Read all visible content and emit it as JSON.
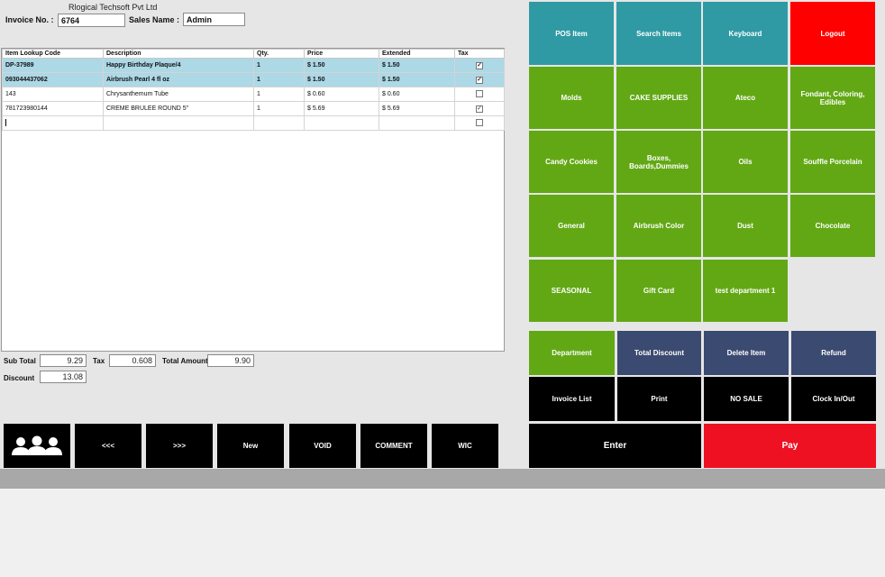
{
  "header": {
    "company": "Rlogical Techsoft Pvt Ltd",
    "invoice_label": "Invoice No. :",
    "invoice_value": "6764",
    "sales_label": "Sales Name :",
    "sales_value": "Admin"
  },
  "grid": {
    "columns": [
      "Item Lookup Code",
      "Description",
      "Qty.",
      "Price",
      "Extended",
      "Tax"
    ],
    "rows": [
      {
        "code": "DP-37989",
        "desc": "Happy Birthday Plaque/4",
        "qty": "1",
        "price": "$ 1.50",
        "ext": "$ 1.50",
        "tax": true,
        "selected": true
      },
      {
        "code": "093044437062",
        "desc": "Airbrush Pearl 4 fl oz",
        "qty": "1",
        "price": "$ 1.50",
        "ext": "$ 1.50",
        "tax": true,
        "selected": true
      },
      {
        "code": "143",
        "desc": "Chrysanthemum Tube",
        "qty": "1",
        "price": "$ 0.60",
        "ext": "$ 0.60",
        "tax": false,
        "selected": false
      },
      {
        "code": "781723980144",
        "desc": "CREME BRULEE ROUND 5\"",
        "qty": "1",
        "price": "$ 5.69",
        "ext": "$ 5.69",
        "tax": true,
        "selected": false
      }
    ],
    "check_glyph": "☑"
  },
  "totals": {
    "subtotal_label": "Sub Total",
    "subtotal": "9.29",
    "tax_label": "Tax",
    "tax": "0.608",
    "total_label": "Total Amount",
    "total": "9.90",
    "discount_label": "Discount",
    "discount": "13.08"
  },
  "bottom_buttons": {
    "customers_icon": "customers-icon",
    "prev": "<<<",
    "next": ">>>",
    "new": "New",
    "void": "VOID",
    "comment": "COMMENT",
    "wic": "WIC"
  },
  "top_buttons": {
    "pos_item": "POS Item",
    "search_items": "Search Items",
    "keyboard": "Keyboard",
    "logout": "Logout"
  },
  "departments": [
    "Molds",
    "CAKE SUPPLIES",
    "Ateco",
    "Fondant, Coloring, Edibles",
    "Candy  Cookies",
    "Boxes, Boards,Dummies",
    "Oils",
    "Souffle Porcelain",
    "General",
    "Airbrush Color",
    "Dust",
    "Chocolate",
    "SEASONAL",
    "Gift Card",
    "test department 1"
  ],
  "actions": {
    "department": "Department",
    "total_discount": "Total Discount",
    "delete_item": "Delete Item",
    "refund": "Refund",
    "invoice_list": "Invoice List",
    "print": "Print",
    "no_sale": "NO SALE",
    "clock": "Clock In/Out",
    "enter": "Enter",
    "pay": "Pay"
  },
  "colors": {
    "teal": "#2f9aa4",
    "red": "#ff0000",
    "green": "#62a814",
    "navy": "#3b4a70",
    "pay_red": "#ee1122"
  }
}
